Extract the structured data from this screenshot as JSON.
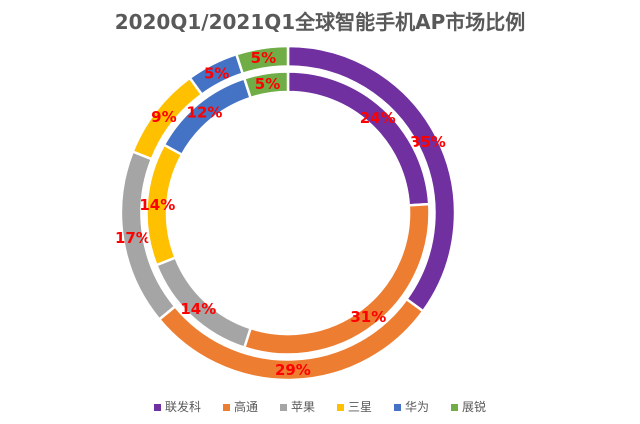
{
  "chart_data": {
    "type": "pie",
    "subtype": "doughnut-double-ring",
    "title": "2020Q1/2021Q1全球智能手机AP市场比例",
    "title_color": "#595959",
    "unit": "%",
    "categories": [
      "联发科",
      "高通",
      "苹果",
      "三星",
      "华为",
      "展锐"
    ],
    "colors": [
      "#7030A0",
      "#ED7D31",
      "#A5A5A5",
      "#FFC000",
      "#4472C4",
      "#70AD47"
    ],
    "series": [
      {
        "name": "2021Q1",
        "ring": "outer",
        "values": [
          35,
          29,
          17,
          9,
          5,
          5
        ]
      },
      {
        "name": "2020Q1",
        "ring": "inner",
        "values": [
          24,
          31,
          14,
          14,
          12,
          5
        ]
      }
    ],
    "data_labels": {
      "color": "#FF0000",
      "format": "{value}%"
    },
    "start_angle_deg": 0,
    "direction": "clockwise",
    "legend_position": "bottom",
    "background": "#FFFFFF"
  }
}
